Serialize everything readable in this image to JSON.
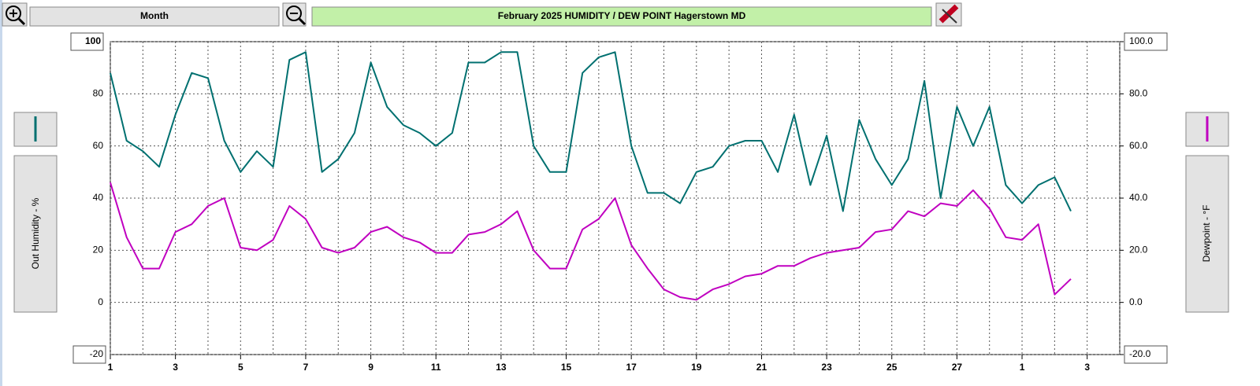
{
  "toolbar": {
    "range_button": "Month"
  },
  "chart_data": {
    "type": "line",
    "title": "February  2025  HUMIDITY / DEW POINT  Hagerstown MD",
    "x": [
      1,
      1.5,
      2,
      2.5,
      3,
      3.5,
      4,
      4.5,
      5,
      5.5,
      6,
      6.5,
      7,
      7.5,
      8,
      8.5,
      9,
      9.5,
      10,
      10.5,
      11,
      11.5,
      12,
      12.5,
      13,
      13.5,
      14,
      14.5,
      15,
      15.5,
      16,
      16.5,
      17,
      17.5,
      18,
      18.5,
      19,
      19.5,
      20,
      20.5,
      21,
      21.5,
      22,
      22.5,
      23,
      23.5,
      24,
      24.5,
      25,
      25.5,
      26,
      26.5,
      27,
      27.5,
      28,
      28.5,
      29,
      29.5,
      30,
      30.5
    ],
    "series": [
      {
        "name": "Out Humidity - %",
        "color": "#007070",
        "values": [
          88,
          62,
          58,
          52,
          72,
          88,
          86,
          62,
          50,
          58,
          52,
          93,
          96,
          50,
          55,
          65,
          92,
          75,
          68,
          65,
          60,
          65,
          92,
          92,
          96,
          96,
          60,
          50,
          50,
          88,
          94,
          96,
          60,
          42,
          42,
          38,
          50,
          52,
          60,
          62,
          62,
          50,
          72,
          45,
          64,
          35,
          70,
          55,
          45,
          55,
          85,
          40,
          75,
          60,
          75,
          45,
          38,
          45,
          48,
          35
        ]
      },
      {
        "name": "Dewpoint - °F",
        "color": "#c000c0",
        "axis": "y2",
        "values": [
          46,
          25,
          13,
          13,
          27,
          30,
          37,
          40,
          21,
          20,
          24,
          37,
          32,
          21,
          19,
          21,
          27,
          29,
          25,
          23,
          19,
          19,
          26,
          27,
          30,
          35,
          20,
          13,
          13,
          28,
          32,
          40,
          22,
          13,
          5,
          2,
          1,
          5,
          7,
          10,
          11,
          14,
          14,
          17,
          19,
          20,
          21,
          27,
          28,
          35,
          33,
          38,
          37,
          43,
          36,
          25,
          24,
          30,
          3,
          9
        ]
      }
    ],
    "xlim": [
      1,
      32
    ],
    "xticks": [
      1,
      3,
      5,
      7,
      9,
      11,
      13,
      15,
      17,
      19,
      21,
      23,
      25,
      27,
      {
        "value": 29,
        "label": "1"
      },
      {
        "value": 31,
        "label": "3"
      }
    ],
    "x_minor_ticks": [
      2,
      4,
      6,
      8,
      10,
      12,
      14,
      16,
      18,
      20,
      22,
      24,
      26,
      28,
      30,
      32
    ],
    "ylim": [
      -20,
      100
    ],
    "yticks": [
      -20,
      0,
      20,
      40,
      60,
      80,
      100
    ],
    "y2lim": [
      -20,
      100
    ],
    "y2ticks": [
      {
        "value": -20,
        "label": "-20.0"
      },
      {
        "value": 0,
        "label": "0.0"
      },
      {
        "value": 20,
        "label": "20.0"
      },
      {
        "value": 40,
        "label": "40.0"
      },
      {
        "value": 60,
        "label": "60.0"
      },
      {
        "value": 80,
        "label": "80.0"
      },
      {
        "value": 100,
        "label": "100.0"
      }
    ],
    "grid": true
  }
}
